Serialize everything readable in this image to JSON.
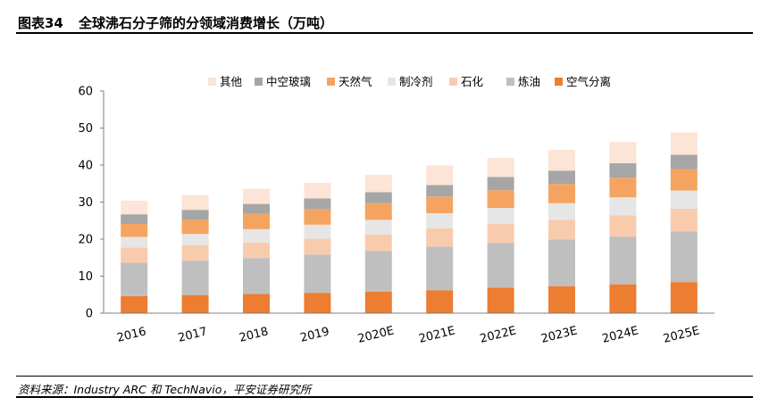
{
  "header": {
    "figure_label": "图表34",
    "title": "全球沸石分子筛的分领域消费增长（万吨）"
  },
  "footer": {
    "source": "资料来源：Industry ARC 和 TechNavio，平安证券研究所"
  },
  "chart_data": {
    "type": "bar",
    "stacked": true,
    "categories": [
      "2016",
      "2017",
      "2018",
      "2019",
      "2020E",
      "2021E",
      "2022E",
      "2023E",
      "2024E",
      "2025E"
    ],
    "ylim": [
      0,
      60
    ],
    "yticks": [
      0,
      10,
      20,
      30,
      40,
      50,
      60
    ],
    "grid": false,
    "legend_position": "top",
    "legend_order": [
      "其他",
      "中空玻璃",
      "天然气",
      "制冷剂",
      "石化",
      "炼油",
      "空气分离"
    ],
    "series": [
      {
        "name": "空气分离",
        "color": "#ED7D31",
        "values": [
          4.6,
          4.9,
          5.2,
          5.5,
          5.8,
          6.2,
          6.9,
          7.3,
          7.8,
          8.4
        ]
      },
      {
        "name": "炼油",
        "color": "#BFBFBF",
        "values": [
          9.0,
          9.3,
          9.7,
          10.3,
          11.0,
          11.8,
          12.1,
          12.6,
          12.9,
          13.7
        ]
      },
      {
        "name": "石化",
        "color": "#F8CBAD",
        "values": [
          4.1,
          4.1,
          4.2,
          4.3,
          4.4,
          4.9,
          5.1,
          5.3,
          5.7,
          6.1
        ]
      },
      {
        "name": "制冷剂",
        "color": "#E7E6E6",
        "values": [
          2.9,
          3.1,
          3.6,
          3.8,
          4.0,
          4.1,
          4.3,
          4.5,
          4.9,
          4.9
        ]
      },
      {
        "name": "天然气",
        "color": "#F4A460",
        "values": [
          3.5,
          3.8,
          4.1,
          4.2,
          4.5,
          4.5,
          4.8,
          5.2,
          5.3,
          5.8
        ]
      },
      {
        "name": "中空玻璃",
        "color": "#A6A6A6",
        "values": [
          2.6,
          2.7,
          2.7,
          2.9,
          3.0,
          3.1,
          3.6,
          3.6,
          3.9,
          3.9
        ]
      },
      {
        "name": "其他",
        "color": "#FCE4D6",
        "values": [
          3.7,
          4.0,
          4.1,
          4.2,
          4.7,
          5.3,
          5.1,
          5.6,
          5.7,
          6.0
        ]
      }
    ]
  }
}
